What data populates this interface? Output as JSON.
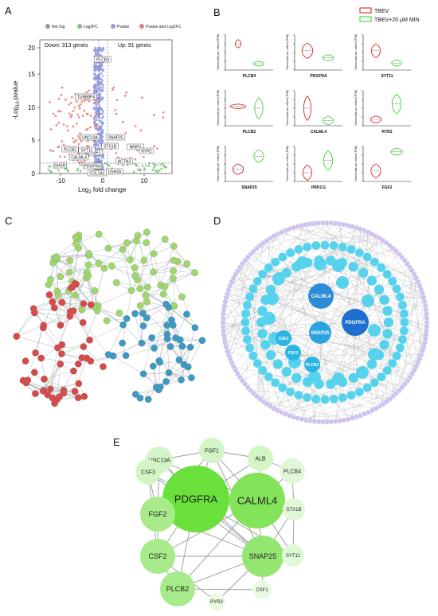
{
  "panels": {
    "a": "A",
    "b": "B",
    "c": "C",
    "d": "D",
    "e": "E"
  },
  "volcano": {
    "legend": [
      {
        "label": "Not Sig",
        "color": "#9a9a9a"
      },
      {
        "label": "Log2FC",
        "color": "#7dc47d"
      },
      {
        "label": "Pvalue",
        "color": "#8f9be0"
      },
      {
        "label": "Pvalue and Log2FC",
        "color": "#e87a7a"
      }
    ],
    "down_text": "Down: 313 genes",
    "up_text": "Up: 91 genes",
    "ylabel_main": "-Log",
    "ylabel_sub": "10",
    "ylabel_tail": " pvalue",
    "xlabel_main": "Log",
    "xlabel_sub": "2",
    "xlabel_tail": " fold change",
    "yticks": [
      "0",
      "5",
      "10",
      "15",
      "20"
    ],
    "xticks": [
      "-10",
      "0",
      "10"
    ],
    "gene_labels": [
      "PLCB4",
      "TUBB8P4",
      "UNC13A",
      "SNAP25",
      "STX1B",
      "NRIP1",
      "FGF1",
      "RYR2",
      "PLCB2",
      "SYT11",
      "CALML4",
      "GHSR",
      "PDGFRA",
      "ACTN3",
      "COL1A1",
      "USH2A"
    ]
  },
  "violins": {
    "legend": [
      {
        "label": "TBEV",
        "color": "#d42a2a"
      },
      {
        "label": "TBEV+20 μM MIN",
        "color": "#3fd43f"
      }
    ],
    "ylabel": "Transcripts per million(TPM)",
    "genes": [
      "PLCB4",
      "PDGFRA",
      "SYT11",
      "PLCB2",
      "CALML4",
      "RYR2",
      "SNAP25",
      "PRKCG",
      "FGF2"
    ]
  },
  "string_network": {
    "node_colors": {
      "cluster1": "#9fd86a",
      "cluster2": "#d84a4a",
      "cluster3": "#3a9ac4"
    }
  },
  "hub_network": {
    "rings": {
      "outer": "#cfc3ee",
      "middle": "#57d2ec",
      "inner": "#2aa8dc"
    },
    "center_nodes": [
      "CALML4",
      "PDGFRA",
      "SNAP25",
      "CSF2",
      "FGF2",
      "PLCB2"
    ]
  },
  "top_network": {
    "nodes": [
      {
        "label": "PDGFRA",
        "color": "#6ae03b"
      },
      {
        "label": "CALML4",
        "color": "#83e45a"
      },
      {
        "label": "SNAP25",
        "color": "#95e670"
      },
      {
        "label": "FGF2",
        "color": "#a8eb8a"
      },
      {
        "label": "CSF2",
        "color": "#a8eb8a"
      },
      {
        "label": "PLCB2",
        "color": "#a8eb8a"
      },
      {
        "label": "UNC13A",
        "color": "#d3f5c6"
      },
      {
        "label": "FGF1",
        "color": "#d3f5c6"
      },
      {
        "label": "ALB",
        "color": "#d3f5c6"
      },
      {
        "label": "CSF3",
        "color": "#d3f5c6"
      },
      {
        "label": "PLCB4",
        "color": "#e1f8d7"
      },
      {
        "label": "STX1B",
        "color": "#e1f8d7"
      },
      {
        "label": "SYT11",
        "color": "#e1f8d7"
      },
      {
        "label": "CSF1",
        "color": "#e9fae1"
      },
      {
        "label": "RYR2",
        "color": "#e9fae1"
      }
    ]
  }
}
